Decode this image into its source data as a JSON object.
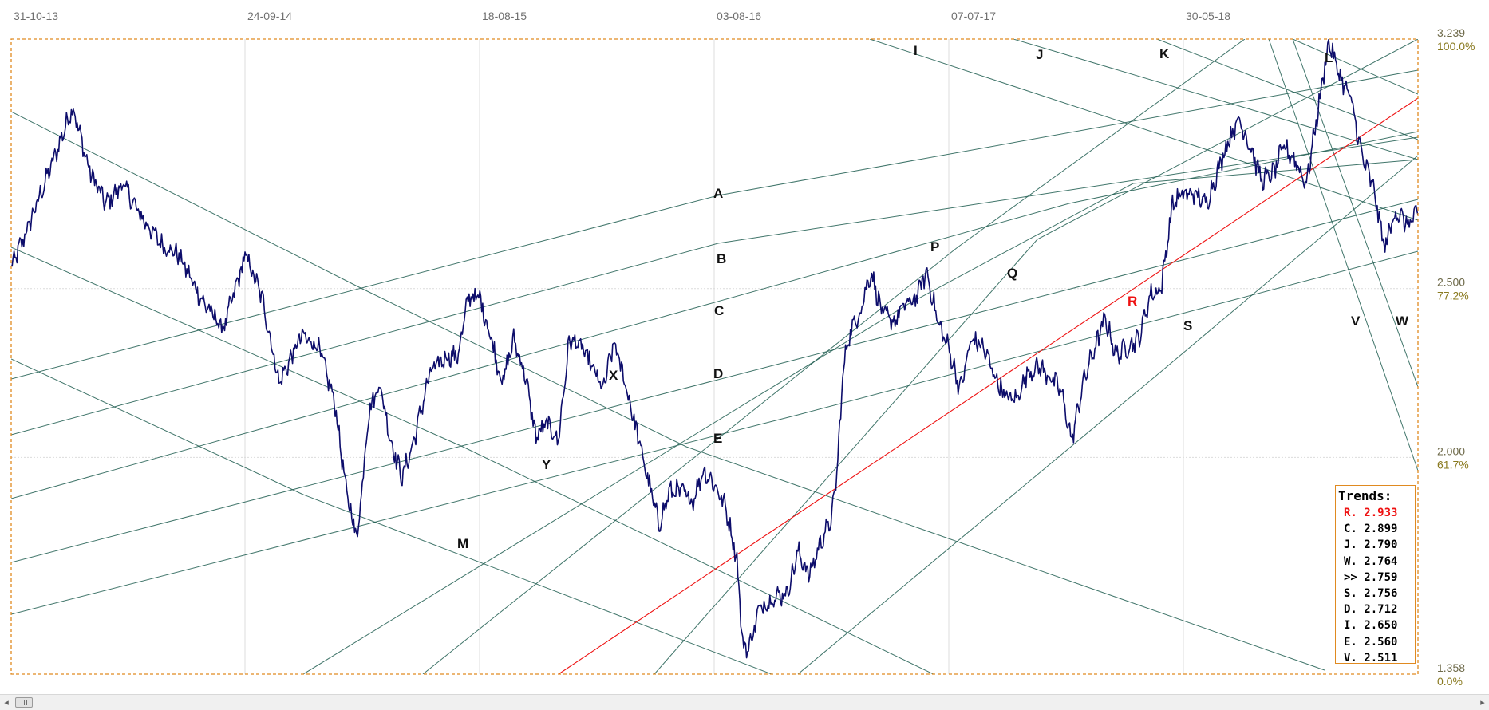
{
  "chart_data": {
    "type": "line",
    "x_ticks": [
      "31-10-13",
      "24-09-14",
      "18-08-15",
      "03-08-16",
      "07-07-17",
      "30-05-18"
    ],
    "y_ticks": [
      {
        "value": 3.239,
        "label": "3.239",
        "pct": "100.0%"
      },
      {
        "value": 2.5,
        "label": "2.500",
        "pct": "77.2%"
      },
      {
        "value": 2.0,
        "label": "2.000",
        "pct": "61.7%"
      },
      {
        "value": 1.358,
        "label": "1.358",
        "pct": "0.0%"
      }
    ],
    "ylim": [
      1.358,
      3.239
    ],
    "grid": true,
    "price_line_color": "#0d0d6b",
    "trend_line_color": "#1f5d50",
    "highlight_trend_color": "#ee1111",
    "frame_color": "#e08a20",
    "series_anchors": [
      [
        0,
        2.56
      ],
      [
        3,
        2.68
      ],
      [
        8,
        2.9
      ],
      [
        11,
        3.04
      ],
      [
        14,
        2.85
      ],
      [
        17,
        2.75
      ],
      [
        20,
        2.81
      ],
      [
        23,
        2.72
      ],
      [
        27,
        2.63
      ],
      [
        30,
        2.6
      ],
      [
        34,
        2.47
      ],
      [
        38,
        2.38
      ],
      [
        42,
        2.6
      ],
      [
        45,
        2.47
      ],
      [
        48,
        2.22
      ],
      [
        52,
        2.36
      ],
      [
        55,
        2.33
      ],
      [
        58,
        2.16
      ],
      [
        60,
        1.9
      ],
      [
        62,
        1.76
      ],
      [
        64,
        2.13
      ],
      [
        66,
        2.22
      ],
      [
        68,
        2.05
      ],
      [
        70,
        1.94
      ],
      [
        72,
        2.04
      ],
      [
        75,
        2.25
      ],
      [
        78,
        2.3
      ],
      [
        80,
        2.3
      ],
      [
        82,
        2.48
      ],
      [
        84,
        2.47
      ],
      [
        86,
        2.35
      ],
      [
        88,
        2.22
      ],
      [
        90,
        2.35
      ],
      [
        92,
        2.25
      ],
      [
        94,
        2.06
      ],
      [
        96,
        2.1
      ],
      [
        98,
        2.05
      ],
      [
        100,
        2.35
      ],
      [
        102,
        2.33
      ],
      [
        104,
        2.27
      ],
      [
        106,
        2.2
      ],
      [
        108,
        2.34
      ],
      [
        110,
        2.22
      ],
      [
        112,
        2.08
      ],
      [
        114,
        1.94
      ],
      [
        116,
        1.8
      ],
      [
        118,
        1.9
      ],
      [
        120,
        1.9
      ],
      [
        122,
        1.87
      ],
      [
        124,
        1.96
      ],
      [
        126,
        1.92
      ],
      [
        128,
        1.85
      ],
      [
        130,
        1.7
      ],
      [
        131,
        1.45
      ],
      [
        132,
        1.43
      ],
      [
        134,
        1.55
      ],
      [
        136,
        1.58
      ],
      [
        139,
        1.6
      ],
      [
        141,
        1.72
      ],
      [
        143,
        1.65
      ],
      [
        145,
        1.75
      ],
      [
        147,
        1.82
      ],
      [
        148,
        1.97
      ],
      [
        149,
        2.25
      ],
      [
        150,
        2.36
      ],
      [
        152,
        2.43
      ],
      [
        154,
        2.55
      ],
      [
        156,
        2.43
      ],
      [
        158,
        2.4
      ],
      [
        160,
        2.45
      ],
      [
        162,
        2.47
      ],
      [
        164,
        2.55
      ],
      [
        166,
        2.4
      ],
      [
        168,
        2.32
      ],
      [
        170,
        2.2
      ],
      [
        172,
        2.35
      ],
      [
        174,
        2.33
      ],
      [
        176,
        2.25
      ],
      [
        178,
        2.18
      ],
      [
        180,
        2.17
      ],
      [
        182,
        2.25
      ],
      [
        184,
        2.27
      ],
      [
        186,
        2.24
      ],
      [
        188,
        2.2
      ],
      [
        190,
        2.05
      ],
      [
        192,
        2.22
      ],
      [
        194,
        2.32
      ],
      [
        196,
        2.41
      ],
      [
        198,
        2.3
      ],
      [
        200,
        2.33
      ],
      [
        202,
        2.35
      ],
      [
        204,
        2.48
      ],
      [
        206,
        2.5
      ],
      [
        208,
        2.75
      ],
      [
        210,
        2.78
      ],
      [
        212,
        2.78
      ],
      [
        214,
        2.75
      ],
      [
        216,
        2.84
      ],
      [
        218,
        2.94
      ],
      [
        220,
        3.0
      ],
      [
        222,
        2.92
      ],
      [
        224,
        2.82
      ],
      [
        226,
        2.84
      ],
      [
        228,
        2.92
      ],
      [
        230,
        2.88
      ],
      [
        232,
        2.81
      ],
      [
        234,
        3.02
      ],
      [
        236,
        3.23
      ],
      [
        238,
        3.13
      ],
      [
        240,
        3.06
      ],
      [
        242,
        2.89
      ],
      [
        244,
        2.8
      ],
      [
        246,
        2.62
      ],
      [
        248,
        2.73
      ],
      [
        250,
        2.69
      ],
      [
        252,
        2.72
      ]
    ],
    "trend_labels": [
      "A",
      "B",
      "C",
      "D",
      "E",
      "I",
      "J",
      "K",
      "L",
      "M",
      "P",
      "Q",
      "R",
      "S",
      "V",
      "W",
      "X",
      "Y"
    ],
    "trends_box": {
      "title": "Trends:",
      "rows": [
        {
          "name": "R.",
          "value": "2.933",
          "highlight": true
        },
        {
          "name": "C.",
          "value": "2.899"
        },
        {
          "name": "J.",
          "value": "2.790"
        },
        {
          "name": "W.",
          "value": "2.764"
        },
        {
          "name": ">>",
          "value": "2.759"
        },
        {
          "name": "S.",
          "value": "2.756"
        },
        {
          "name": "D.",
          "value": "2.712"
        },
        {
          "name": "I.",
          "value": "2.650"
        },
        {
          "name": "E.",
          "value": "2.560"
        },
        {
          "name": "V.",
          "value": "2.511"
        }
      ]
    }
  },
  "scrollbar": {
    "left_arrow": "◂",
    "right_arrow": "▸"
  }
}
